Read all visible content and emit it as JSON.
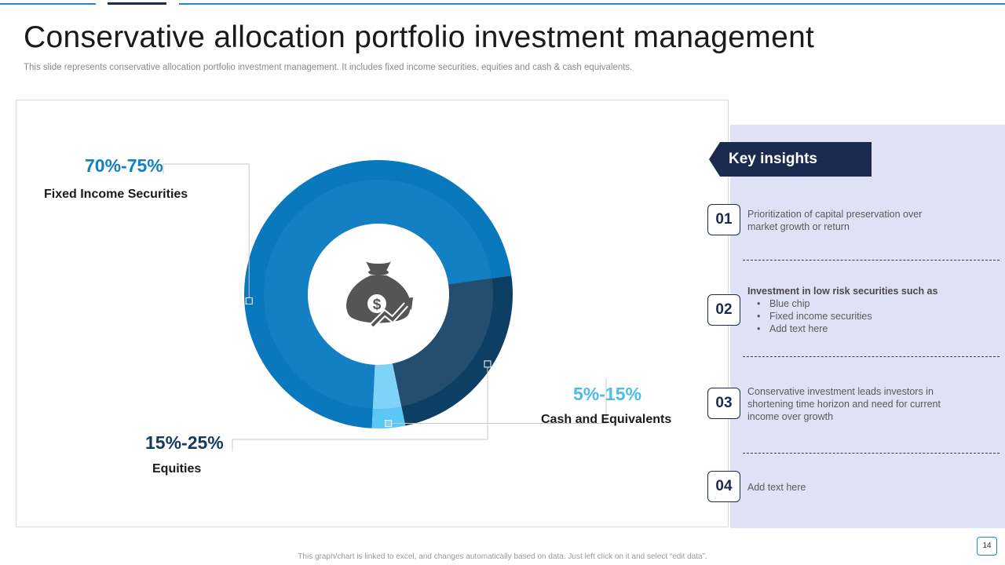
{
  "slide": {
    "title": "Conservative allocation portfolio investment management",
    "subtitle": "This slide represents conservative allocation portfolio investment management. It includes fixed income securities, equities and cash & cash equivalents.",
    "footer_note": "This graph/chart is linked to excel, and changes automatically based on data. Just left click on it and select “edit data”.",
    "page_number": "14"
  },
  "chart_data": {
    "type": "pie",
    "variant": "donut",
    "categories": [
      "Fixed Income Securities",
      "Cash and Equivalents",
      "Equities"
    ],
    "values": [
      72,
      4,
      24
    ],
    "range_labels": [
      "70%-75%",
      "5%-15%",
      "15%-25%"
    ],
    "colors": [
      "#1380c4",
      "#7fd3f7",
      "#234e70"
    ],
    "outer_colors": [
      "#0a78bd",
      "#5cc6f4",
      "#0d3f64"
    ],
    "label_colors": [
      "#1380c4",
      "#4bbde8",
      "#143b5c"
    ],
    "center_icon": "money-bag-growth-icon",
    "legend": "none"
  },
  "insights": {
    "heading": "Key insights",
    "items": [
      {
        "number": "01",
        "text": "Prioritization of capital preservation  over market growth  or return"
      },
      {
        "number": "02",
        "heading": "Investment in low risk securities such as",
        "bullets": [
          "Blue chip",
          "Fixed income securities",
          "Add text here"
        ]
      },
      {
        "number": "03",
        "text": "Conservative  investment  leads investors  in shortening time horizon and need for current income over  growth"
      },
      {
        "number": "04",
        "text": "Add text here"
      }
    ]
  },
  "colors": {
    "accent_blue": "#1f8ac4",
    "navy": "#1b2a4e",
    "panel_lavender": "#dfe1f5"
  }
}
